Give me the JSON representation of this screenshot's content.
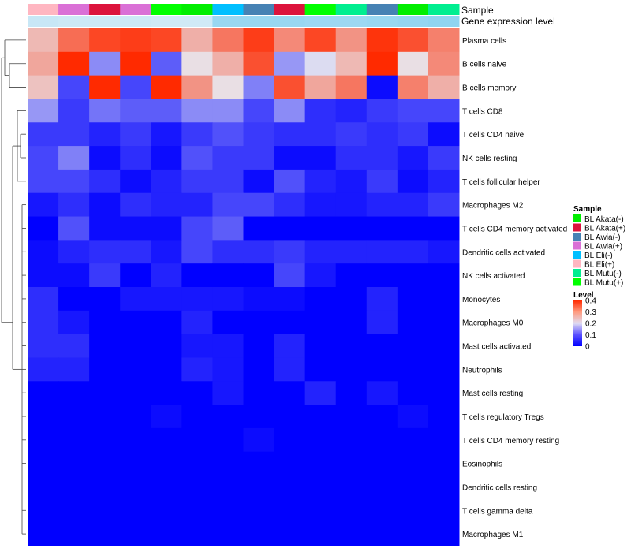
{
  "chart_data": {
    "type": "heatmap",
    "title": "",
    "annotation_labels": {
      "sample": "Sample",
      "gene_expression": "Gene expression level"
    },
    "rows": [
      "Plasma cells",
      "B cells naive",
      "B cells memory",
      "T cells CD8",
      "T cells CD4 naive",
      "NK cells resting",
      "T cells follicular helper",
      "Macrophages M2",
      "T cells CD4 memory activated",
      "Dendritic cells activated",
      "NK cells activated",
      "Monocytes",
      "Macrophages M0",
      "Mast cells activated",
      "Neutrophils",
      "Mast cells resting",
      "T cells regulatory  Tregs",
      "T cells CD4 memory resting",
      "Eosinophils",
      "Dendritic cells resting",
      "T cells gamma delta",
      "Macrophages M1"
    ],
    "column_samples": [
      "BL Eli(+)",
      "BL Awia(+)",
      "BL Akata(+)",
      "BL Awia(+)",
      "BL Mutu(+)",
      "BL Akata(-)",
      "BL Eli(-)",
      "BL Awia(-)",
      "BL Akata(+)",
      "BL Mutu(+)",
      "BL Mutu(-)",
      "BL Awia(-)",
      "BL Akata(-)",
      "BL Mutu(-)"
    ],
    "column_gene_expression": [
      0.3,
      0.25,
      0.25,
      0.25,
      0.2,
      0.2,
      0.85,
      0.85,
      0.85,
      0.8,
      0.8,
      0.85,
      0.9,
      0.95
    ],
    "values": [
      [
        0.25,
        0.33,
        0.37,
        0.38,
        0.37,
        0.26,
        0.32,
        0.38,
        0.3,
        0.37,
        0.29,
        0.39,
        0.36,
        0.31
      ],
      [
        0.27,
        0.4,
        0.12,
        0.4,
        0.08,
        0.21,
        0.26,
        0.36,
        0.13,
        0.19,
        0.25,
        0.4,
        0.21,
        0.3
      ],
      [
        0.24,
        0.06,
        0.4,
        0.06,
        0.4,
        0.29,
        0.21,
        0.11,
        0.36,
        0.27,
        0.32,
        0.01,
        0.31,
        0.26
      ],
      [
        0.13,
        0.05,
        0.1,
        0.08,
        0.08,
        0.12,
        0.12,
        0.06,
        0.12,
        0.04,
        0.03,
        0.05,
        0.06,
        0.06
      ],
      [
        0.05,
        0.05,
        0.03,
        0.05,
        0.02,
        0.05,
        0.07,
        0.05,
        0.04,
        0.04,
        0.05,
        0.04,
        0.05,
        0.01
      ],
      [
        0.06,
        0.11,
        0.01,
        0.04,
        0.01,
        0.07,
        0.05,
        0.05,
        0.01,
        0.01,
        0.04,
        0.04,
        0.02,
        0.05
      ],
      [
        0.06,
        0.06,
        0.04,
        0.01,
        0.03,
        0.05,
        0.05,
        0.01,
        0.07,
        0.03,
        0.02,
        0.05,
        0.01,
        0.03
      ],
      [
        0.02,
        0.04,
        0.01,
        0.04,
        0.03,
        0.03,
        0.06,
        0.06,
        0.04,
        0.02,
        0.02,
        0.03,
        0.03,
        0.05
      ],
      [
        0.0,
        0.07,
        0.01,
        0.01,
        0.01,
        0.06,
        0.08,
        0.0,
        0.0,
        0.0,
        0.0,
        0.0,
        0.0,
        0.0
      ],
      [
        0.01,
        0.03,
        0.04,
        0.04,
        0.02,
        0.06,
        0.04,
        0.04,
        0.05,
        0.03,
        0.03,
        0.03,
        0.03,
        0.02
      ],
      [
        0.01,
        0.01,
        0.05,
        0.0,
        0.03,
        0.0,
        0.0,
        0.0,
        0.06,
        0.02,
        0.0,
        0.0,
        0.0,
        0.0
      ],
      [
        0.04,
        0.0,
        0.0,
        0.02,
        0.02,
        0.02,
        0.02,
        0.01,
        0.01,
        0.0,
        0.0,
        0.03,
        0.0,
        0.0
      ],
      [
        0.04,
        0.02,
        0.0,
        0.0,
        0.0,
        0.03,
        0.0,
        0.0,
        0.0,
        0.0,
        0.0,
        0.03,
        0.0,
        0.0
      ],
      [
        0.04,
        0.04,
        0.0,
        0.0,
        0.0,
        0.02,
        0.02,
        0.0,
        0.03,
        0.0,
        0.0,
        0.0,
        0.0,
        0.0
      ],
      [
        0.03,
        0.03,
        0.0,
        0.0,
        0.0,
        0.03,
        0.02,
        0.0,
        0.03,
        0.0,
        0.0,
        0.0,
        0.0,
        0.0
      ],
      [
        0.0,
        0.0,
        0.0,
        0.0,
        0.0,
        0.0,
        0.02,
        0.0,
        0.0,
        0.03,
        0.0,
        0.02,
        0.0,
        0.0
      ],
      [
        0.0,
        0.0,
        0.0,
        0.0,
        0.01,
        0.0,
        0.0,
        0.0,
        0.0,
        0.0,
        0.0,
        0.0,
        0.01,
        0.0
      ],
      [
        0.0,
        0.0,
        0.0,
        0.0,
        0.0,
        0.0,
        0.0,
        0.01,
        0.0,
        0.0,
        0.0,
        0.0,
        0.0,
        0.0
      ],
      [
        0.0,
        0.0,
        0.0,
        0.0,
        0.0,
        0.0,
        0.0,
        0.0,
        0.0,
        0.0,
        0.0,
        0.0,
        0.0,
        0.0
      ],
      [
        0.0,
        0.0,
        0.0,
        0.0,
        0.0,
        0.0,
        0.0,
        0.0,
        0.0,
        0.0,
        0.0,
        0.0,
        0.0,
        0.0
      ],
      [
        0.0,
        0.0,
        0.0,
        0.0,
        0.0,
        0.0,
        0.0,
        0.0,
        0.0,
        0.0,
        0.0,
        0.0,
        0.0,
        0.0
      ],
      [
        0.0,
        0.0,
        0.0,
        0.0,
        0.0,
        0.0,
        0.0,
        0.0,
        0.0,
        0.0,
        0.0,
        0.0,
        0.0,
        0.0
      ]
    ],
    "legend": {
      "sample_title": "Sample",
      "sample_entries": [
        {
          "label": "BL Akata(-)",
          "color": "#00ee00"
        },
        {
          "label": "BL Akata(+)",
          "color": "#dc143c"
        },
        {
          "label": "BL Awia(-)",
          "color": "#4682b4"
        },
        {
          "label": "BL Awia(+)",
          "color": "#da70d6"
        },
        {
          "label": "BL Eli(-)",
          "color": "#00bfff"
        },
        {
          "label": "BL Eli(+)",
          "color": "#ffb6c1"
        },
        {
          "label": "BL Mutu(-)",
          "color": "#00ee90"
        },
        {
          "label": "BL Mutu(+)",
          "color": "#00ff00"
        }
      ],
      "level_title": "Level",
      "level_ticks": [
        "0.4",
        "0.3",
        "0.2",
        "0.1",
        "0"
      ],
      "level_tick_values": [
        0.4,
        0.3,
        0.2,
        0.1,
        0
      ],
      "placement": "right"
    },
    "color_scale": {
      "min": 0,
      "max": 0.4,
      "low": "#0000ff",
      "mid": "#e8e8f0",
      "high": "#ff2a00"
    },
    "dendrogram": "left"
  }
}
